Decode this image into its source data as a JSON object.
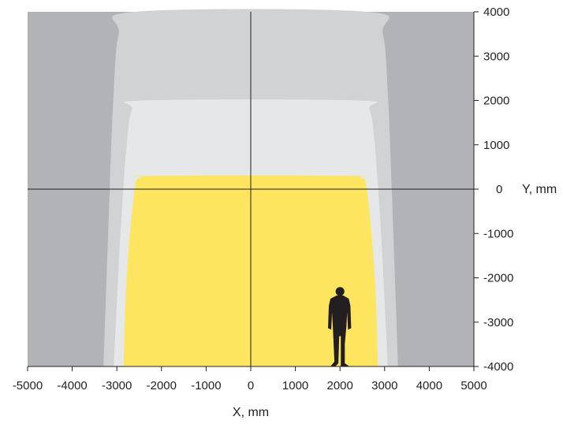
{
  "chart_data": {
    "type": "area",
    "title": "",
    "xlabel": "X, mm",
    "ylabel": "Y, mm",
    "xlim": [
      -5000,
      5000
    ],
    "ylim": [
      -4000,
      4000
    ],
    "x_ticks": [
      -5000,
      -4000,
      -3000,
      -2000,
      -1000,
      0,
      1000,
      2000,
      3000,
      4000,
      5000
    ],
    "y_ticks": [
      4000,
      3000,
      2000,
      1000,
      0,
      -1000,
      -2000,
      -3000,
      -4000
    ],
    "grid": false,
    "colors": {
      "background": "#b2b3b6",
      "outer_zone": "#d1d2d4",
      "middle_zone": "#e6e7e8",
      "inner_zone": "#fee560",
      "axis": "#231f20",
      "figure": "#231f20"
    },
    "zones": [
      {
        "id": "outer",
        "color_key": "outer_zone",
        "boundary": [
          [
            -3300,
            -4000
          ],
          [
            -3160,
            0
          ],
          [
            -3080,
            2000
          ],
          [
            -2960,
            3500
          ],
          [
            -2600,
            4000
          ],
          [
            2600,
            4000
          ],
          [
            2960,
            3500
          ],
          [
            3080,
            2000
          ],
          [
            3160,
            0
          ],
          [
            3300,
            -4000
          ]
        ]
      },
      {
        "id": "middle",
        "color_key": "middle_zone",
        "boundary": [
          [
            -3070,
            -4000
          ],
          [
            -2920,
            -1000
          ],
          [
            -2780,
            1000
          ],
          [
            -2660,
            1800
          ],
          [
            -2400,
            2000
          ],
          [
            2400,
            2000
          ],
          [
            2660,
            1800
          ],
          [
            2780,
            1000
          ],
          [
            2920,
            -1000
          ],
          [
            3070,
            -4000
          ]
        ]
      },
      {
        "id": "inner",
        "color_key": "inner_zone",
        "boundary": [
          [
            -2850,
            -4000
          ],
          [
            -2780,
            -2000
          ],
          [
            -2600,
            0
          ],
          [
            -2450,
            250
          ],
          [
            -2200,
            300
          ],
          [
            2200,
            300
          ],
          [
            2450,
            250
          ],
          [
            2600,
            0
          ],
          [
            2780,
            -2000
          ],
          [
            2850,
            -4000
          ]
        ]
      }
    ],
    "human_figure": {
      "x_center": 2000,
      "y_bottom": -4000,
      "height_mm": 1800
    }
  }
}
